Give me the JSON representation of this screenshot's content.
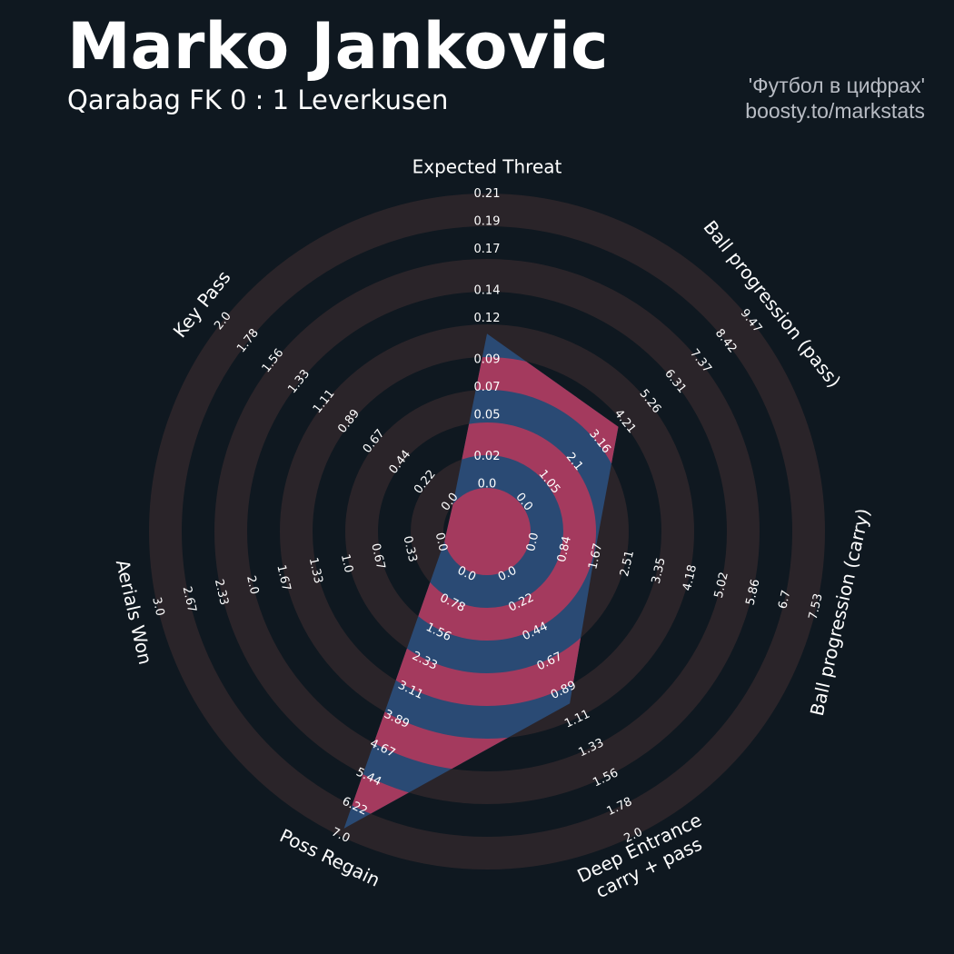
{
  "chart_data": {
    "type": "radar",
    "title": "Marko Jankovic",
    "subtitle": "Qarabag FK 0 : 1 Leverkusen",
    "credits": [
      "'Футбол в цифрах'",
      "boosty.to/markstats"
    ],
    "ring_color": "#2a2429",
    "colors": [
      "#2a4a74",
      "#a43a5e"
    ],
    "axes": [
      {
        "name": [
          "Expected Threat"
        ],
        "value": 0.11,
        "ticks": [
          {
            "value": 0,
            "label": "0.0"
          },
          0.02,
          0.05,
          0.07,
          0.09,
          0.12,
          0.14,
          0.17,
          0.19,
          0.21
        ]
      },
      {
        "name": [
          "Ball progression (pass)"
        ],
        "value": 4.0,
        "ticks": [
          {
            "value": 0,
            "label": "0.0"
          },
          1.05,
          2.1,
          3.16,
          4.21,
          5.26,
          6.31,
          7.37,
          8.42,
          9.47
        ]
      },
      {
        "name": [
          "Ball progression (carry)"
        ],
        "value": 1.7,
        "ticks": [
          {
            "value": 0,
            "label": "0.0"
          },
          0.84,
          1.67,
          2.51,
          3.35,
          4.18,
          5.02,
          5.86,
          6.7,
          7.53
        ]
      },
      {
        "name": [
          "Deep Entrance",
          "carry + pass"
        ],
        "value": 1.0,
        "ticks": [
          {
            "value": 0,
            "label": "0.0"
          },
          0.22,
          0.44,
          0.67,
          0.89,
          1.11,
          1.33,
          1.56,
          1.78,
          {
            "value": 2,
            "label": "2.0"
          }
        ]
      },
      {
        "name": [
          "Poss Regain"
        ],
        "value": 6.8,
        "ticks": [
          {
            "value": 0,
            "label": "0.0"
          },
          0.78,
          1.56,
          2.33,
          3.11,
          3.89,
          4.67,
          5.44,
          6.22,
          {
            "value": 7,
            "label": "7.0"
          }
        ]
      },
      {
        "name": [
          "Aerials Won"
        ],
        "value": 0,
        "ticks": [
          {
            "value": 0,
            "label": "0.0"
          },
          0.33,
          0.67,
          {
            "value": 1,
            "label": "1.0"
          },
          1.33,
          1.67,
          {
            "value": 2,
            "label": "2.0"
          },
          2.33,
          2.67,
          {
            "value": 3,
            "label": "3.0"
          }
        ]
      },
      {
        "name": [
          "Key Pass"
        ],
        "value": 0,
        "ticks": [
          {
            "value": 0,
            "label": "0.0"
          },
          0.22,
          0.44,
          0.67,
          0.89,
          1.11,
          1.33,
          1.56,
          1.78,
          {
            "value": 2,
            "label": "2.0"
          }
        ]
      }
    ]
  }
}
